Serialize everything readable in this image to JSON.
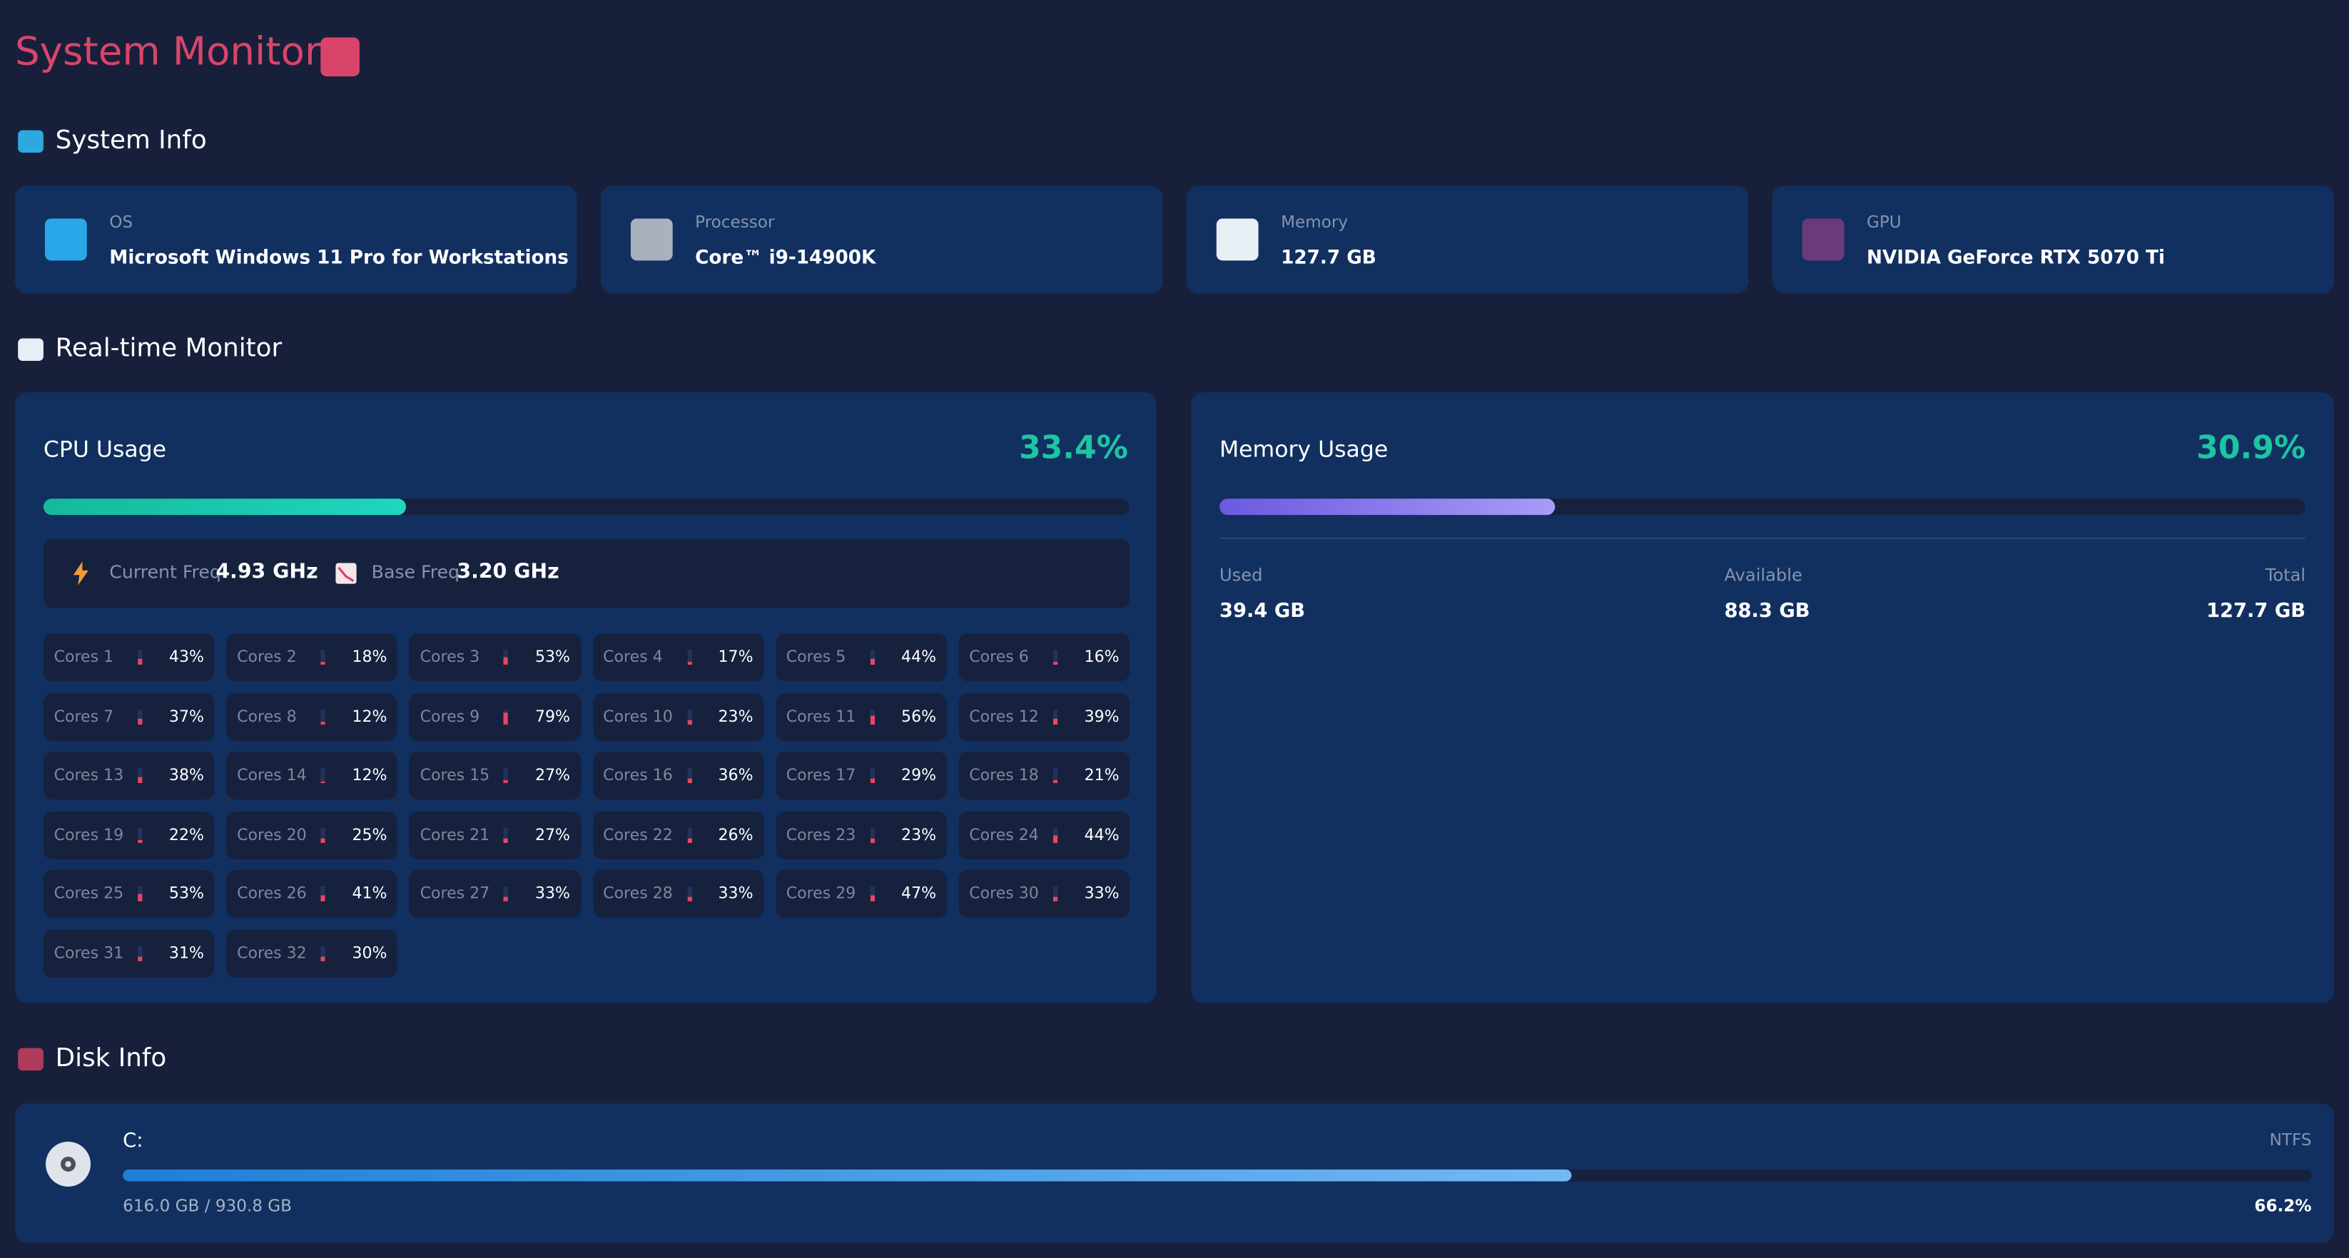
{
  "header": {
    "title": "System Monitor"
  },
  "sections": {
    "system_info": "System Info",
    "realtime": "Real-time Monitor",
    "disk_info": "Disk Info"
  },
  "system_info": [
    {
      "label": "OS",
      "value": "Microsoft Windows 11 Pro for Workstations"
    },
    {
      "label": "Processor",
      "value": "Core™ i9-14900K"
    },
    {
      "label": "Memory",
      "value": "127.7 GB"
    },
    {
      "label": "GPU",
      "value": "NVIDIA GeForce RTX 5070 Ti"
    }
  ],
  "cpu": {
    "title": "CPU Usage",
    "usage": {
      "value": 33.4,
      "label": "33.4%"
    },
    "current_freq": {
      "label": "Current Freq",
      "value": "4.93 GHz"
    },
    "base_freq": {
      "label": "Base Freq",
      "value": "3.20 GHz"
    },
    "cores": [
      {
        "name": "Cores 1",
        "value": 43,
        "label": "43%"
      },
      {
        "name": "Cores 2",
        "value": 18,
        "label": "18%"
      },
      {
        "name": "Cores 3",
        "value": 53,
        "label": "53%"
      },
      {
        "name": "Cores 4",
        "value": 17,
        "label": "17%"
      },
      {
        "name": "Cores 5",
        "value": 44,
        "label": "44%"
      },
      {
        "name": "Cores 6",
        "value": 16,
        "label": "16%"
      },
      {
        "name": "Cores 7",
        "value": 37,
        "label": "37%"
      },
      {
        "name": "Cores 8",
        "value": 12,
        "label": "12%"
      },
      {
        "name": "Cores 9",
        "value": 79,
        "label": "79%"
      },
      {
        "name": "Cores 10",
        "value": 23,
        "label": "23%"
      },
      {
        "name": "Cores 11",
        "value": 56,
        "label": "56%"
      },
      {
        "name": "Cores 12",
        "value": 39,
        "label": "39%"
      },
      {
        "name": "Cores 13",
        "value": 38,
        "label": "38%"
      },
      {
        "name": "Cores 14",
        "value": 12,
        "label": "12%"
      },
      {
        "name": "Cores 15",
        "value": 27,
        "label": "27%"
      },
      {
        "name": "Cores 16",
        "value": 36,
        "label": "36%"
      },
      {
        "name": "Cores 17",
        "value": 29,
        "label": "29%"
      },
      {
        "name": "Cores 18",
        "value": 21,
        "label": "21%"
      },
      {
        "name": "Cores 19",
        "value": 22,
        "label": "22%"
      },
      {
        "name": "Cores 20",
        "value": 25,
        "label": "25%"
      },
      {
        "name": "Cores 21",
        "value": 27,
        "label": "27%"
      },
      {
        "name": "Cores 22",
        "value": 26,
        "label": "26%"
      },
      {
        "name": "Cores 23",
        "value": 23,
        "label": "23%"
      },
      {
        "name": "Cores 24",
        "value": 44,
        "label": "44%"
      },
      {
        "name": "Cores 25",
        "value": 53,
        "label": "53%"
      },
      {
        "name": "Cores 26",
        "value": 41,
        "label": "41%"
      },
      {
        "name": "Cores 27",
        "value": 33,
        "label": "33%"
      },
      {
        "name": "Cores 28",
        "value": 33,
        "label": "33%"
      },
      {
        "name": "Cores 29",
        "value": 47,
        "label": "47%"
      },
      {
        "name": "Cores 30",
        "value": 33,
        "label": "33%"
      },
      {
        "name": "Cores 31",
        "value": 31,
        "label": "31%"
      },
      {
        "name": "Cores 32",
        "value": 30,
        "label": "30%"
      }
    ]
  },
  "memory": {
    "title": "Memory Usage",
    "usage": {
      "value": 30.9,
      "label": "30.9%"
    },
    "stats": [
      {
        "label": "Used",
        "value": "39.4 GB"
      },
      {
        "label": "Available",
        "value": "88.3 GB"
      },
      {
        "label": "Total",
        "value": "127.7 GB"
      }
    ]
  },
  "disk": {
    "name": "C:",
    "filesystem": "NTFS",
    "usage_text": "616.0 GB / 930.8 GB",
    "usage": {
      "value": 66.2,
      "label": "66.2%"
    }
  }
}
